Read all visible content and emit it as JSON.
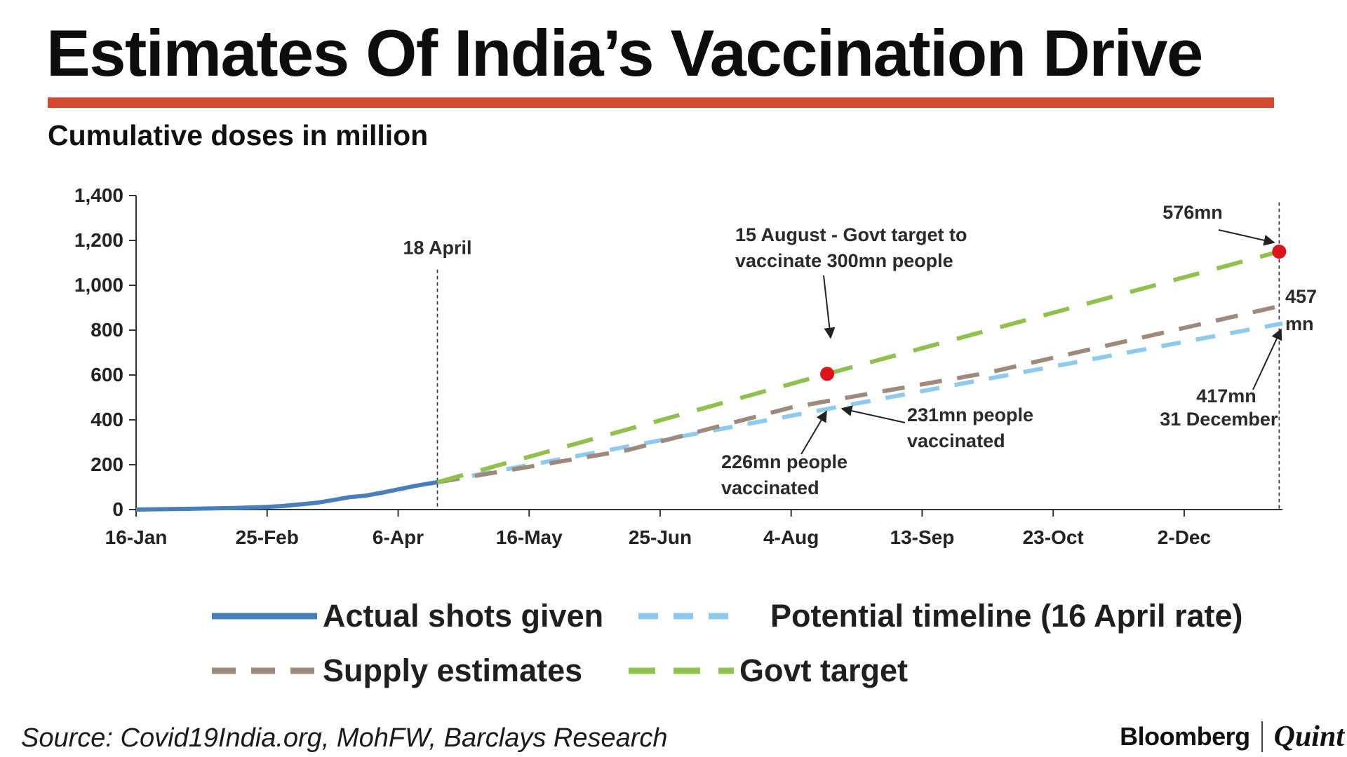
{
  "title": "Estimates Of India’s Vaccination Drive",
  "subtitle": "Cumulative doses in million",
  "source": "Source: Covid19India.org, MohFW, Barclays Research",
  "brand": {
    "primary": "Bloomberg",
    "secondary": "Quint"
  },
  "colors": {
    "accent_rule": "#d3492f",
    "actual": "#4a7ebb",
    "potential": "#8ec9ee",
    "supply": "#9e8a7c",
    "govt": "#8fc14c",
    "marker": "#e0121b"
  },
  "legend": [
    {
      "key": "actual",
      "label": "Actual shots given",
      "style": "solid"
    },
    {
      "key": "potential",
      "label": "Potential timeline (16 April rate)",
      "style": "dashed"
    },
    {
      "key": "supply",
      "label": "Supply estimates",
      "style": "dashed"
    },
    {
      "key": "govt",
      "label": "Govt target",
      "style": "dashed"
    }
  ],
  "chart_data": {
    "type": "line",
    "title": "Estimates Of India’s Vaccination Drive",
    "ylabel": "Cumulative doses in million",
    "xlabel": "",
    "x_unit": "days since 16-Jan",
    "xlim": [
      0,
      350
    ],
    "ylim": [
      0,
      1400
    ],
    "yticks": [
      0,
      200,
      400,
      600,
      800,
      1000,
      1200,
      1400
    ],
    "ytick_labels": [
      "0",
      "200",
      "400",
      "600",
      "800",
      "1,000",
      "1,200",
      "1,400"
    ],
    "xticks": [
      0,
      40,
      80,
      120,
      160,
      200,
      240,
      280,
      320
    ],
    "xtick_labels": [
      "16-Jan",
      "25-Feb",
      "6-Apr",
      "16-May",
      "25-Jun",
      "4-Aug",
      "13-Sep",
      "23-Oct",
      "2-Dec"
    ],
    "grid": false,
    "series": [
      {
        "name": "Actual shots given",
        "key": "actual",
        "style": "solid",
        "x": [
          0,
          15,
          30,
          40,
          45,
          50,
          55,
          60,
          65,
          70,
          75,
          80,
          85,
          89,
          92
        ],
        "y": [
          0,
          3,
          7,
          12,
          16,
          23,
          30,
          42,
          55,
          62,
          75,
          90,
          105,
          115,
          122
        ]
      },
      {
        "name": "Potential timeline (16 April rate)",
        "key": "potential",
        "style": "dashed",
        "x": [
          92,
          350
        ],
        "y": [
          122,
          830
        ]
      },
      {
        "name": "Supply estimates",
        "key": "supply",
        "style": "dashed",
        "x": [
          92,
          150,
          200,
          260,
          350
        ],
        "y": [
          122,
          265,
          455,
          610,
          910
        ]
      },
      {
        "name": "Govt target",
        "key": "govt",
        "style": "dashed",
        "x": [
          92,
          211,
          349
        ],
        "y": [
          122,
          605,
          1150
        ]
      }
    ],
    "markers": [
      {
        "x": 211,
        "y": 605,
        "series": "govt"
      },
      {
        "x": 349,
        "y": 1150,
        "series": "govt"
      }
    ],
    "vlines": [
      {
        "x": 92,
        "label": "18 April"
      },
      {
        "x": 349,
        "label": "31 December"
      }
    ],
    "annotations": [
      {
        "id": "govt-aug",
        "lines": [
          "15 August - Govt target to",
          "vaccinate 300mn people"
        ]
      },
      {
        "id": "govt-dec",
        "lines": [
          "576mn"
        ]
      },
      {
        "id": "supply-dec",
        "lines": [
          "457",
          "mn"
        ]
      },
      {
        "id": "potential-dec",
        "lines": [
          "417mn"
        ]
      },
      {
        "id": "supply-aug",
        "lines": [
          "231mn people",
          "vaccinated"
        ]
      },
      {
        "id": "potential-aug",
        "lines": [
          "226mn people",
          "vaccinated"
        ]
      }
    ]
  }
}
